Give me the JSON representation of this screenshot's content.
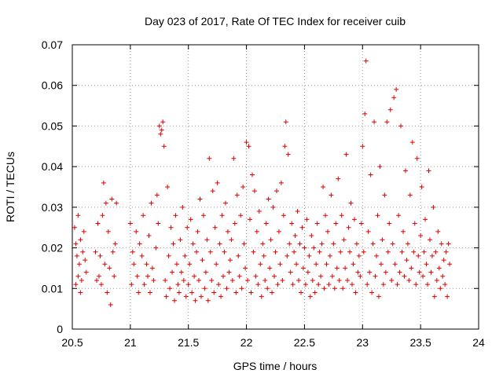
{
  "chart_data": {
    "type": "scatter",
    "title": "Day 023 of 2017, Rate Of TEC Index for receiver cuib",
    "xlabel": "GPS time / hours",
    "ylabel": "ROTI / TECUs",
    "xlim": [
      20.5,
      24
    ],
    "ylim": [
      0,
      0.07
    ],
    "x_ticks": [
      20.5,
      21,
      21.5,
      22,
      22.5,
      23,
      23.5,
      24
    ],
    "x_tick_labels": [
      "20.5",
      "21",
      "21.5",
      "22",
      "22.5",
      "23",
      "23.5",
      "24"
    ],
    "y_ticks": [
      0,
      0.01,
      0.02,
      0.03,
      0.04,
      0.05,
      0.06,
      0.07
    ],
    "y_tick_labels": [
      "0",
      "0.01",
      "0.02",
      "0.03",
      "0.04",
      "0.05",
      "0.06",
      "0.07"
    ],
    "grid": true,
    "marker": "+",
    "marker_color": "#e00000",
    "series": [
      {
        "name": "ROTI",
        "points": [
          [
            20.52,
            0.025
          ],
          [
            20.53,
            0.021
          ],
          [
            20.53,
            0.011
          ],
          [
            20.54,
            0.018
          ],
          [
            20.55,
            0.028
          ],
          [
            20.55,
            0.013
          ],
          [
            20.56,
            0.016
          ],
          [
            20.57,
            0.009
          ],
          [
            20.57,
            0.022
          ],
          [
            20.58,
            0.012
          ],
          [
            20.59,
            0.019
          ],
          [
            20.6,
            0.024
          ],
          [
            20.61,
            0.017
          ],
          [
            20.62,
            0.014
          ],
          [
            20.7,
            0.019
          ],
          [
            20.71,
            0.012
          ],
          [
            20.72,
            0.026
          ],
          [
            20.73,
            0.013
          ],
          [
            20.74,
            0.018
          ],
          [
            20.75,
            0.011
          ],
          [
            20.76,
            0.028
          ],
          [
            20.77,
            0.036
          ],
          [
            20.78,
            0.016
          ],
          [
            20.79,
            0.031
          ],
          [
            20.8,
            0.009
          ],
          [
            20.81,
            0.024
          ],
          [
            20.82,
            0.015
          ],
          [
            20.83,
            0.006
          ],
          [
            20.84,
            0.032
          ],
          [
            20.85,
            0.019
          ],
          [
            20.86,
            0.013
          ],
          [
            20.87,
            0.021
          ],
          [
            20.88,
            0.031
          ],
          [
            21.0,
            0.026
          ],
          [
            21.01,
            0.011
          ],
          [
            21.02,
            0.019
          ],
          [
            21.03,
            0.016
          ],
          [
            21.05,
            0.024
          ],
          [
            21.06,
            0.013
          ],
          [
            21.07,
            0.009
          ],
          [
            21.08,
            0.021
          ],
          [
            21.1,
            0.018
          ],
          [
            21.11,
            0.028
          ],
          [
            21.12,
            0.011
          ],
          [
            21.14,
            0.016
          ],
          [
            21.15,
            0.013
          ],
          [
            21.16,
            0.023
          ],
          [
            21.17,
            0.009
          ],
          [
            21.18,
            0.031
          ],
          [
            21.19,
            0.015
          ],
          [
            21.2,
            0.012
          ],
          [
            21.22,
            0.02
          ],
          [
            21.23,
            0.033
          ],
          [
            21.24,
            0.026
          ],
          [
            21.25,
            0.05
          ],
          [
            21.26,
            0.048
          ],
          [
            21.27,
            0.049
          ],
          [
            21.28,
            0.051
          ],
          [
            21.29,
            0.045
          ],
          [
            21.3,
            0.012
          ],
          [
            21.31,
            0.008
          ],
          [
            21.32,
            0.035
          ],
          [
            21.33,
            0.018
          ],
          [
            21.34,
            0.01
          ],
          [
            21.35,
            0.025
          ],
          [
            21.36,
            0.014
          ],
          [
            21.37,
            0.021
          ],
          [
            21.38,
            0.007
          ],
          [
            21.39,
            0.028
          ],
          [
            21.4,
            0.016
          ],
          [
            21.41,
            0.011
          ],
          [
            21.42,
            0.009
          ],
          [
            21.43,
            0.022
          ],
          [
            21.44,
            0.014
          ],
          [
            21.45,
            0.03
          ],
          [
            21.46,
            0.012
          ],
          [
            21.47,
            0.018
          ],
          [
            21.48,
            0.008
          ],
          [
            21.49,
            0.025
          ],
          [
            21.5,
            0.011
          ],
          [
            21.51,
            0.016
          ],
          [
            21.52,
            0.027
          ],
          [
            21.53,
            0.009
          ],
          [
            21.54,
            0.021
          ],
          [
            21.55,
            0.013
          ],
          [
            21.56,
            0.007
          ],
          [
            21.57,
            0.019
          ],
          [
            21.58,
            0.024
          ],
          [
            21.59,
            0.012
          ],
          [
            21.6,
            0.032
          ],
          [
            21.61,
            0.008
          ],
          [
            21.62,
            0.017
          ],
          [
            21.63,
            0.028
          ],
          [
            21.64,
            0.01
          ],
          [
            21.65,
            0.014
          ],
          [
            21.66,
            0.022
          ],
          [
            21.67,
            0.007
          ],
          [
            21.68,
            0.042
          ],
          [
            21.69,
            0.019
          ],
          [
            21.7,
            0.012
          ],
          [
            21.71,
            0.034
          ],
          [
            21.72,
            0.009
          ],
          [
            21.73,
            0.025
          ],
          [
            21.74,
            0.016
          ],
          [
            21.75,
            0.036
          ],
          [
            21.76,
            0.011
          ],
          [
            21.77,
            0.021
          ],
          [
            21.78,
            0.008
          ],
          [
            21.79,
            0.028
          ],
          [
            21.8,
            0.013
          ],
          [
            21.81,
            0.019
          ],
          [
            21.82,
            0.031
          ],
          [
            21.83,
            0.01
          ],
          [
            21.84,
            0.024
          ],
          [
            21.85,
            0.014
          ],
          [
            21.86,
            0.017
          ],
          [
            21.87,
            0.022
          ],
          [
            21.88,
            0.012
          ],
          [
            21.89,
            0.042
          ],
          [
            21.9,
            0.026
          ],
          [
            21.91,
            0.009
          ],
          [
            21.92,
            0.033
          ],
          [
            21.93,
            0.018
          ],
          [
            21.94,
            0.013
          ],
          [
            21.95,
            0.028
          ],
          [
            21.96,
            0.01
          ],
          [
            21.97,
            0.035
          ],
          [
            21.98,
            0.021
          ],
          [
            21.99,
            0.015
          ],
          [
            22.0,
            0.046
          ],
          [
            22.01,
            0.012
          ],
          [
            22.02,
            0.045
          ],
          [
            22.03,
            0.027
          ],
          [
            22.04,
            0.009
          ],
          [
            22.05,
            0.038
          ],
          [
            22.06,
            0.019
          ],
          [
            22.07,
            0.034
          ],
          [
            22.08,
            0.013
          ],
          [
            22.09,
            0.024
          ],
          [
            22.1,
            0.011
          ],
          [
            22.11,
            0.029
          ],
          [
            22.12,
            0.016
          ],
          [
            22.13,
            0.008
          ],
          [
            22.14,
            0.021
          ],
          [
            22.15,
            0.018
          ],
          [
            22.16,
            0.012
          ],
          [
            22.17,
            0.026
          ],
          [
            22.18,
            0.01
          ],
          [
            22.19,
            0.032
          ],
          [
            22.2,
            0.015
          ],
          [
            22.21,
            0.022
          ],
          [
            22.22,
            0.009
          ],
          [
            22.23,
            0.03
          ],
          [
            22.24,
            0.013
          ],
          [
            22.25,
            0.019
          ],
          [
            22.26,
            0.034
          ],
          [
            22.27,
            0.011
          ],
          [
            22.28,
            0.024
          ],
          [
            22.29,
            0.016
          ],
          [
            22.3,
            0.036
          ],
          [
            22.31,
            0.012
          ],
          [
            22.32,
            0.028
          ],
          [
            22.33,
            0.045
          ],
          [
            22.34,
            0.051
          ],
          [
            22.35,
            0.018
          ],
          [
            22.36,
            0.043
          ],
          [
            22.37,
            0.021
          ],
          [
            22.38,
            0.014
          ],
          [
            22.39,
            0.026
          ],
          [
            22.4,
            0.011
          ],
          [
            22.41,
            0.019
          ],
          [
            22.42,
            0.023
          ],
          [
            22.43,
            0.016
          ],
          [
            22.44,
            0.029
          ],
          [
            22.45,
            0.012
          ],
          [
            22.46,
            0.021
          ],
          [
            22.47,
            0.009
          ],
          [
            22.48,
            0.025
          ],
          [
            22.49,
            0.015
          ],
          [
            22.5,
            0.02
          ],
          [
            22.51,
            0.011
          ],
          [
            22.52,
            0.027
          ],
          [
            22.53,
            0.014
          ],
          [
            22.54,
            0.018
          ],
          [
            22.55,
            0.008
          ],
          [
            22.56,
            0.023
          ],
          [
            22.57,
            0.012
          ],
          [
            22.58,
            0.02
          ],
          [
            22.59,
            0.009
          ],
          [
            22.6,
            0.016
          ],
          [
            22.61,
            0.026
          ],
          [
            22.62,
            0.011
          ],
          [
            22.63,
            0.019
          ],
          [
            22.64,
            0.013
          ],
          [
            22.65,
            0.021
          ],
          [
            22.66,
            0.035
          ],
          [
            22.67,
            0.01
          ],
          [
            22.68,
            0.028
          ],
          [
            22.69,
            0.016
          ],
          [
            22.7,
            0.024
          ],
          [
            22.71,
            0.011
          ],
          [
            22.72,
            0.018
          ],
          [
            22.73,
            0.033
          ],
          [
            22.74,
            0.013
          ],
          [
            22.75,
            0.021
          ],
          [
            22.76,
            0.01
          ],
          [
            22.77,
            0.026
          ],
          [
            22.78,
            0.015
          ],
          [
            22.79,
            0.037
          ],
          [
            22.8,
            0.012
          ],
          [
            22.81,
            0.019
          ],
          [
            22.82,
            0.028
          ],
          [
            22.83,
            0.01
          ],
          [
            22.84,
            0.022
          ],
          [
            22.85,
            0.015
          ],
          [
            22.86,
            0.043
          ],
          [
            22.87,
            0.012
          ],
          [
            22.88,
            0.025
          ],
          [
            22.89,
            0.019
          ],
          [
            22.9,
            0.031
          ],
          [
            22.91,
            0.011
          ],
          [
            22.92,
            0.016
          ],
          [
            22.93,
            0.027
          ],
          [
            22.94,
            0.009
          ],
          [
            22.95,
            0.021
          ],
          [
            22.96,
            0.014
          ],
          [
            22.97,
            0.018
          ],
          [
            22.98,
            0.013
          ],
          [
            22.99,
            0.026
          ],
          [
            23.0,
            0.045
          ],
          [
            23.01,
            0.019
          ],
          [
            23.02,
            0.053
          ],
          [
            23.03,
            0.066
          ],
          [
            23.04,
            0.011
          ],
          [
            23.05,
            0.024
          ],
          [
            23.06,
            0.014
          ],
          [
            23.07,
            0.038
          ],
          [
            23.08,
            0.009
          ],
          [
            23.09,
            0.021
          ],
          [
            23.1,
            0.051
          ],
          [
            23.11,
            0.013
          ],
          [
            23.12,
            0.018
          ],
          [
            23.13,
            0.028
          ],
          [
            23.14,
            0.008
          ],
          [
            23.15,
            0.04
          ],
          [
            23.16,
            0.016
          ],
          [
            23.17,
            0.022
          ],
          [
            23.18,
            0.011
          ],
          [
            23.19,
            0.033
          ],
          [
            23.2,
            0.014
          ],
          [
            23.21,
            0.051
          ],
          [
            23.22,
            0.019
          ],
          [
            23.23,
            0.026
          ],
          [
            23.24,
            0.054
          ],
          [
            23.25,
            0.012
          ],
          [
            23.26,
            0.021
          ],
          [
            23.27,
            0.057
          ],
          [
            23.28,
            0.016
          ],
          [
            23.29,
            0.059
          ],
          [
            23.3,
            0.011
          ],
          [
            23.31,
            0.028
          ],
          [
            23.32,
            0.014
          ],
          [
            23.33,
            0.05
          ],
          [
            23.34,
            0.019
          ],
          [
            23.35,
            0.024
          ],
          [
            23.36,
            0.013
          ],
          [
            23.37,
            0.039
          ],
          [
            23.38,
            0.017
          ],
          [
            23.39,
            0.021
          ],
          [
            23.4,
            0.012
          ],
          [
            23.41,
            0.033
          ],
          [
            23.42,
            0.015
          ],
          [
            23.43,
            0.046
          ],
          [
            23.44,
            0.019
          ],
          [
            23.45,
            0.026
          ],
          [
            23.46,
            0.011
          ],
          [
            23.47,
            0.042
          ],
          [
            23.48,
            0.018
          ],
          [
            23.49,
            0.014
          ],
          [
            23.5,
            0.023
          ],
          [
            23.51,
            0.035
          ],
          [
            23.52,
            0.013
          ],
          [
            23.53,
            0.019
          ],
          [
            23.54,
            0.027
          ],
          [
            23.55,
            0.016
          ],
          [
            23.56,
            0.011
          ],
          [
            23.57,
            0.039
          ],
          [
            23.58,
            0.022
          ],
          [
            23.59,
            0.014
          ],
          [
            23.6,
            0.018
          ],
          [
            23.61,
            0.03
          ],
          [
            23.62,
            0.008
          ],
          [
            23.63,
            0.019
          ],
          [
            23.64,
            0.012
          ],
          [
            23.65,
            0.024
          ],
          [
            23.66,
            0.015
          ],
          [
            23.67,
            0.01
          ],
          [
            23.68,
            0.021
          ],
          [
            23.69,
            0.013
          ],
          [
            23.7,
            0.017
          ],
          [
            23.71,
            0.011
          ],
          [
            23.72,
            0.019
          ],
          [
            23.73,
            0.008
          ],
          [
            23.74,
            0.021
          ],
          [
            23.75,
            0.016
          ]
        ]
      }
    ]
  }
}
